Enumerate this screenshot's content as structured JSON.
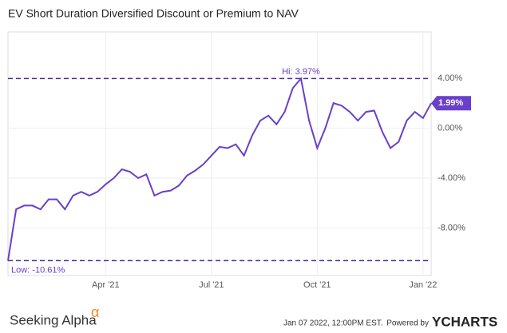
{
  "chart_data": {
    "type": "line",
    "title": "EV Short Duration Diversified Discount or Premium to NAV",
    "categories": [
      null,
      null,
      null,
      null,
      null,
      null,
      null,
      null,
      null,
      null,
      null,
      null,
      "Apr '21",
      null,
      null,
      null,
      null,
      null,
      null,
      null,
      null,
      null,
      null,
      null,
      null,
      "Jul '21",
      null,
      null,
      null,
      null,
      null,
      null,
      null,
      null,
      null,
      null,
      null,
      null,
      "Oct '21",
      null,
      null,
      null,
      null,
      null,
      null,
      null,
      null,
      null,
      null,
      null,
      null,
      "Jan '22",
      null
    ],
    "series": [
      {
        "name": "Discount or Premium to NAV",
        "color": "#6a3fc9",
        "values": [
          -10.61,
          -6.5,
          -6.2,
          -6.2,
          -6.5,
          -5.7,
          -5.7,
          -6.5,
          -5.4,
          -5.1,
          -5.4,
          -5.1,
          -4.5,
          -4.0,
          -3.3,
          -3.5,
          -4.0,
          -3.7,
          -5.4,
          -5.1,
          -5.0,
          -4.6,
          -3.8,
          -3.4,
          -2.9,
          -2.2,
          -1.5,
          -1.6,
          -1.3,
          -2.2,
          -0.6,
          0.6,
          1.0,
          0.3,
          1.3,
          3.2,
          3.97,
          0.6,
          -1.6,
          0.0,
          2.0,
          1.8,
          1.3,
          0.6,
          1.3,
          1.4,
          -0.3,
          -1.6,
          -1.1,
          0.6,
          1.3,
          0.8,
          1.99
        ],
        "value_labels": {
          "52": "1.99%"
        }
      }
    ],
    "annotations": {
      "hi": "Hi: 3.97%",
      "low": "Low: -10.61%"
    },
    "ylim": [
      -11.8,
      7.7
    ],
    "yticks": [
      {
        "value": 4,
        "label": "4.00%"
      },
      {
        "value": 0,
        "label": "0.00%"
      },
      {
        "value": -4,
        "label": "-4.00%"
      },
      {
        "value": -8,
        "label": "-8.00%"
      }
    ],
    "grid": true,
    "footer": {
      "brand": "Seeking Alpha",
      "brand_mark": "α",
      "date": "Jan 07 2022, 12:00PM EST.",
      "powered": "Powered by",
      "provider": "YCHARTS"
    }
  }
}
